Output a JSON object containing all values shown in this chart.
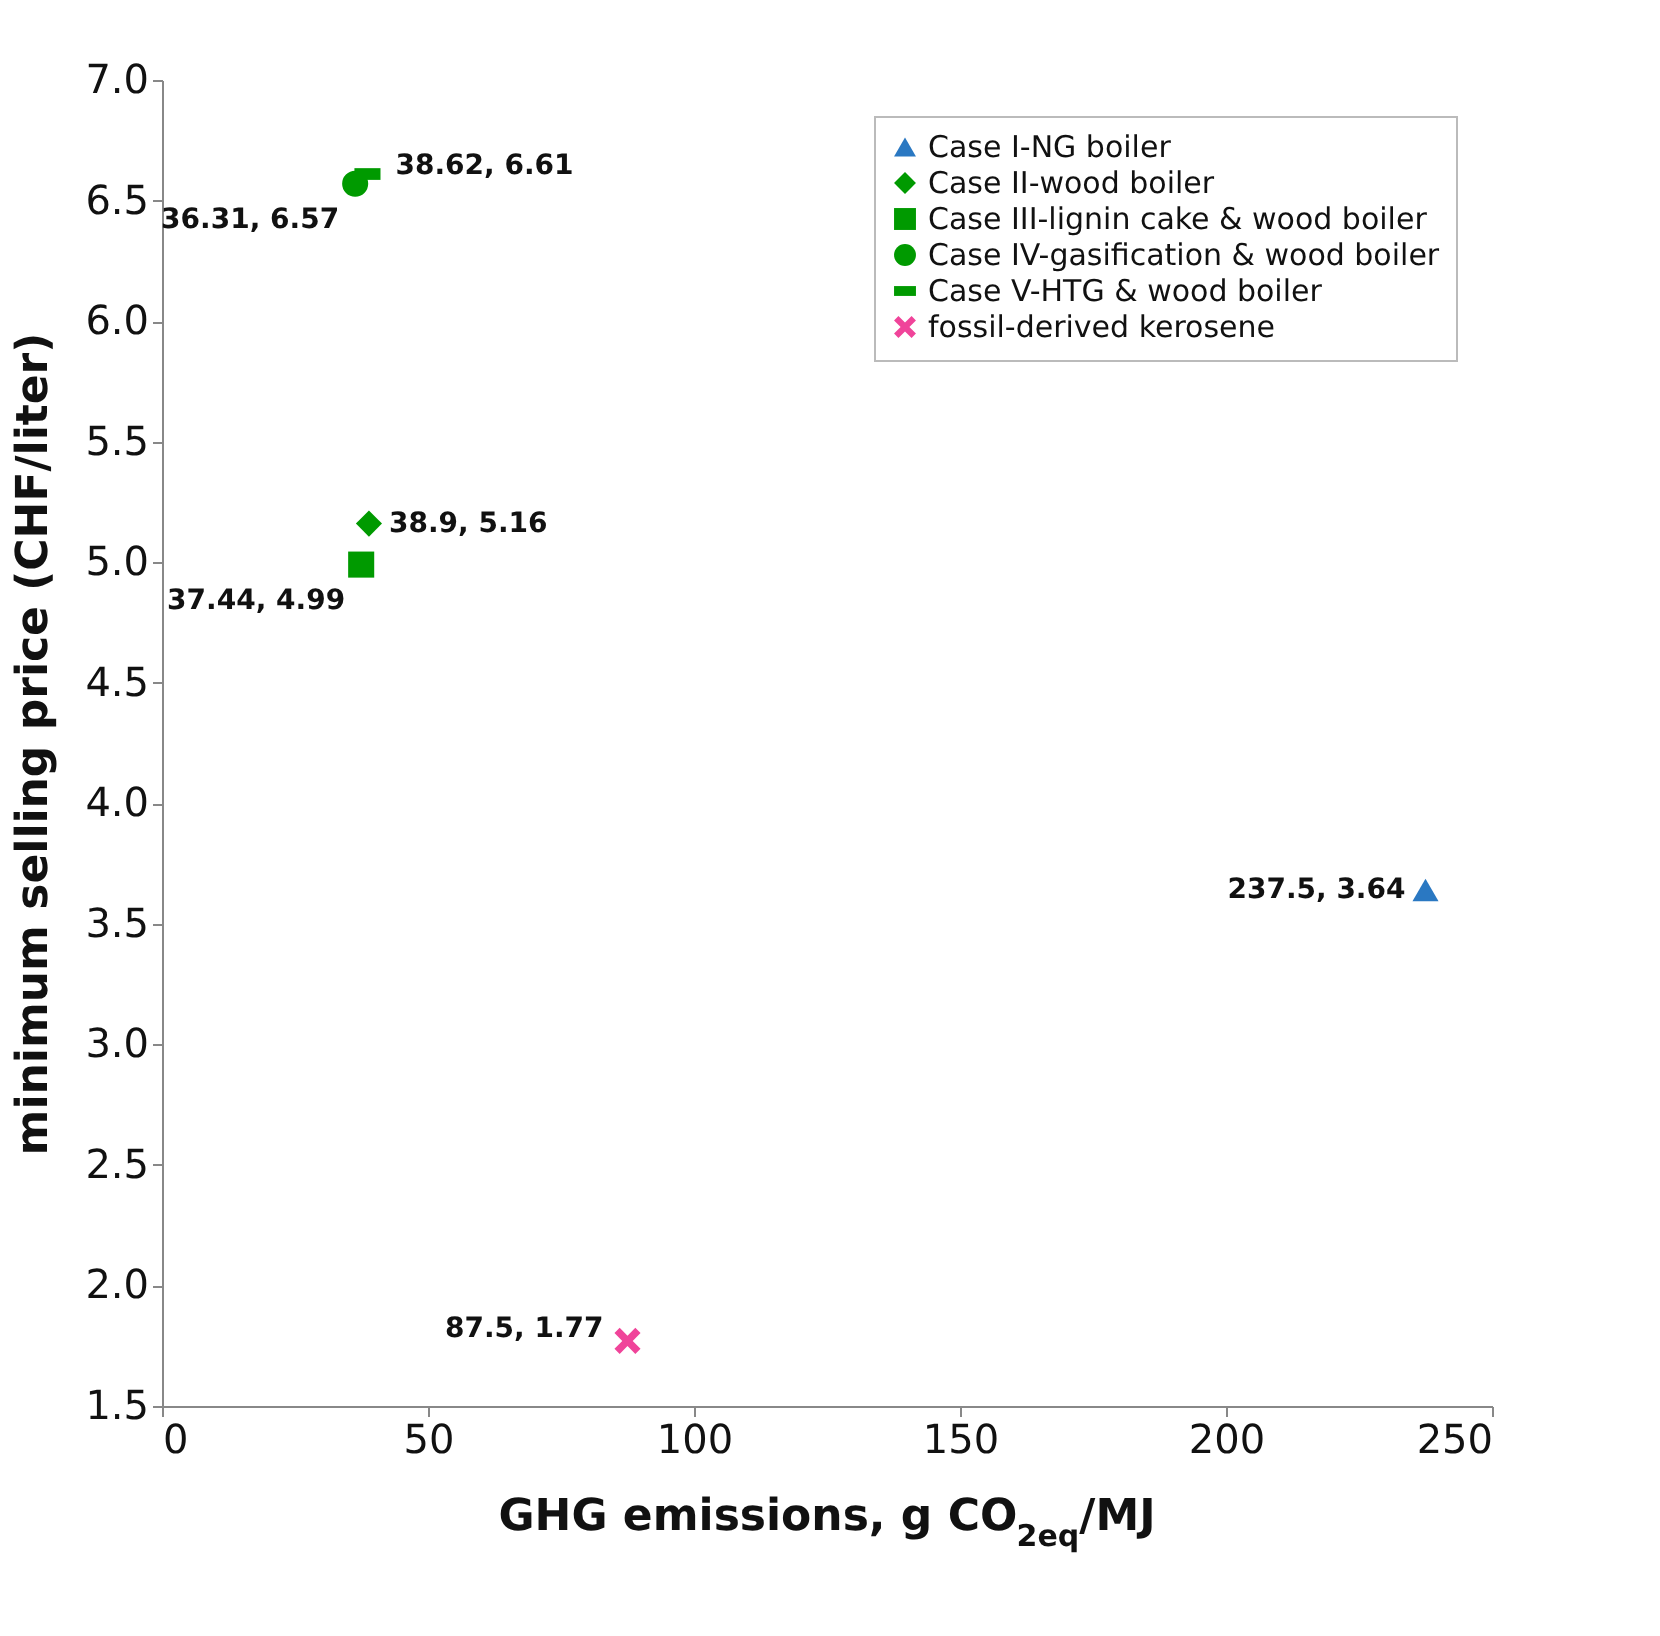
{
  "chart_data": {
    "type": "scatter",
    "xlabel": "GHG emissions, g CO$_{2eq}$/MJ",
    "ylabel": "minimum selling price (CHF/liter)",
    "xlim": [
      0,
      250
    ],
    "xticks": [
      0,
      50,
      100,
      150,
      200,
      250
    ],
    "ylim": [
      1.5,
      7.0
    ],
    "yticks": [
      {
        "value": 1.5,
        "label": "1.5"
      },
      {
        "value": 2,
        "label": "2.0"
      },
      {
        "value": 2.5,
        "label": "2.5"
      },
      {
        "value": 3,
        "label": "3.0"
      },
      {
        "value": 3.5,
        "label": "3.5"
      },
      {
        "value": 4,
        "label": "4.0"
      },
      {
        "value": 4.5,
        "label": "4.5"
      },
      {
        "value": 5,
        "label": "5.0"
      },
      {
        "value": 5.5,
        "label": "5.5"
      },
      {
        "value": 6,
        "label": "6.0"
      },
      {
        "value": 6.5,
        "label": "6.5"
      },
      {
        "value": 7,
        "label": "7.0"
      }
    ],
    "legend": "top right",
    "series": [
      {
        "name": "Case I-NG boiler",
        "color": "#2a78c2",
        "marker": "triangle",
        "x": [
          237.5
        ],
        "values": [
          3.64
        ],
        "value_labels": [
          "237.5, 3.64"
        ]
      },
      {
        "name": "Case II-wood boiler",
        "color": "#009a00",
        "marker": "diamond",
        "x": [
          38.9
        ],
        "values": [
          5.16
        ],
        "value_labels": [
          "38.9, 5.16"
        ]
      },
      {
        "name": "Case III-lignin cake & wood boiler",
        "color": "#009a00",
        "marker": "square",
        "x": [
          37.44
        ],
        "values": [
          4.99
        ],
        "value_labels": [
          "37.44, 4.99"
        ]
      },
      {
        "name": "Case IV-gasification & wood boiler",
        "color": "#009a00",
        "marker": "circle",
        "x": [
          36.31
        ],
        "values": [
          6.57
        ],
        "value_labels": [
          "36.31, 6.57"
        ]
      },
      {
        "name": "Case V-HTG & wood boiler",
        "color": "#009a00",
        "marker": "square",
        "x": [
          38.62
        ],
        "values": [
          6.61
        ],
        "value_labels": [
          "38.62, 6.61"
        ]
      },
      {
        "name": "fossil-derived kerosene",
        "color": "#f0449a",
        "marker": "cross",
        "x": [
          87.5
        ],
        "values": [
          1.77
        ],
        "value_labels": [
          "87.5, 1.77"
        ]
      }
    ]
  }
}
